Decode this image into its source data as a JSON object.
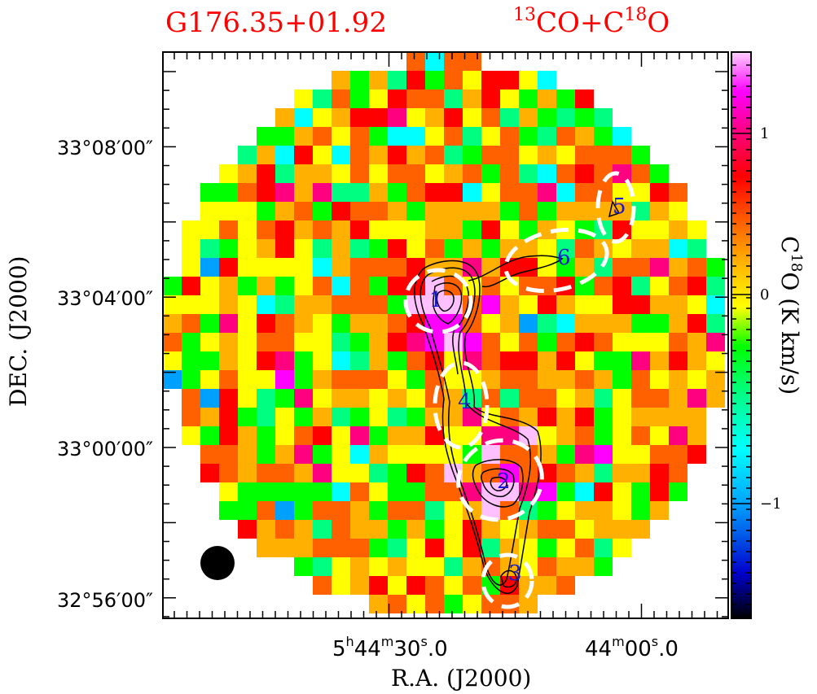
{
  "title": {
    "source": "G176.35+01.92",
    "tracer_iso1": "13",
    "tracer_mol1": "CO+C",
    "tracer_iso2": "18",
    "tracer_mol2": "O"
  },
  "colors": {
    "title": "#ff0000",
    "contour": "#000000",
    "ellipse": "#ffffff",
    "label": "#1a1acc",
    "beam": "#000000"
  },
  "chart_data": {
    "type": "heatmap",
    "subtype": "astronomical channel map with contour overlay",
    "colormap": [
      "#000000",
      "#0000cc",
      "#00a0ff",
      "#00ffff",
      "#00ff80",
      "#00ff00",
      "#ffff00",
      "#ffb000",
      "#ff6000",
      "#ff0000",
      "#ff0080",
      "#ff00ff",
      "#ffc0ff"
    ],
    "xlabel": "R.A. (J2000)",
    "ylabel": "DEC. (J2000)",
    "x_ticks": [
      {
        "h": "5",
        "m": "44",
        "s": "30",
        "frac": ".0",
        "show_h": true
      },
      {
        "h": "",
        "m": "44",
        "s": "00",
        "frac": ".0",
        "show_h": false
      }
    ],
    "y_ticks": [
      "33°08′00″",
      "33°04′00″",
      "33°00′00″",
      "32°56′00″"
    ],
    "colorbar": {
      "label_pre": "C",
      "label_sup": "18",
      "label_post": "O (K km/s)",
      "ticks": [
        "1",
        "0",
        "−1"
      ],
      "range": [
        -1.6,
        1.6
      ]
    },
    "clumps": [
      {
        "id": "1"
      },
      {
        "id": "2"
      },
      {
        "id": "3"
      },
      {
        "id": "4"
      },
      {
        "id": "5"
      },
      {
        "id": "6"
      }
    ],
    "beam": "circular beam marker, bottom-left",
    "grid": false
  }
}
